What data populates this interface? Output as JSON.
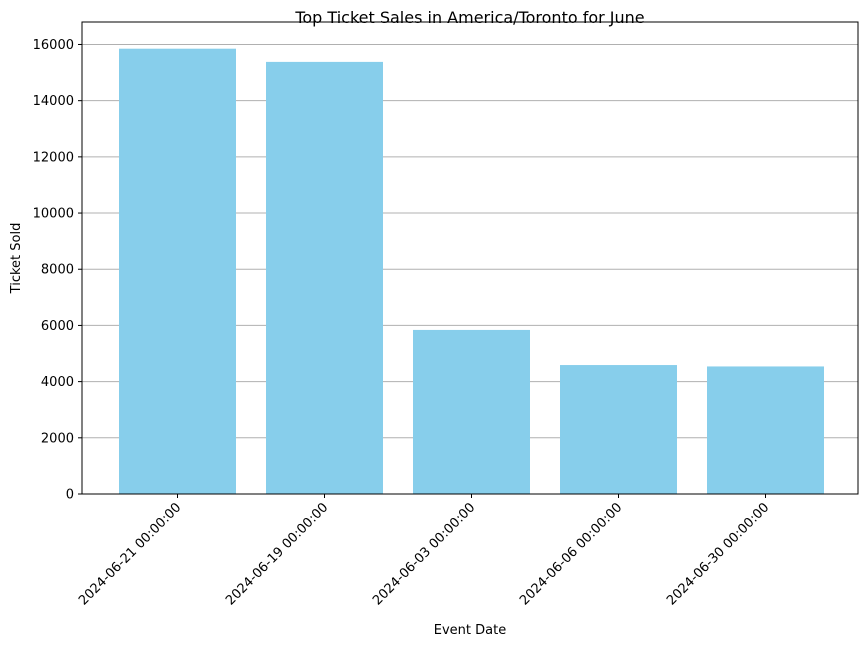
{
  "chart_data": {
    "type": "bar",
    "title": "Top Ticket Sales in America/Toronto for June",
    "xlabel": "Event Date",
    "ylabel": "Ticket Sold",
    "categories": [
      "2024-06-21 00:00:00",
      "2024-06-19 00:00:00",
      "2024-06-03 00:00:00",
      "2024-06-06 00:00:00",
      "2024-06-30 00:00:00"
    ],
    "values": [
      15850,
      15380,
      5840,
      4590,
      4540
    ],
    "ylim": [
      0,
      16800
    ],
    "yticks": [
      0,
      2000,
      4000,
      6000,
      8000,
      10000,
      12000,
      14000,
      16000
    ],
    "grid": "horizontal",
    "bar_color": "#87ceeb",
    "grid_color": "#b0b0b0"
  }
}
